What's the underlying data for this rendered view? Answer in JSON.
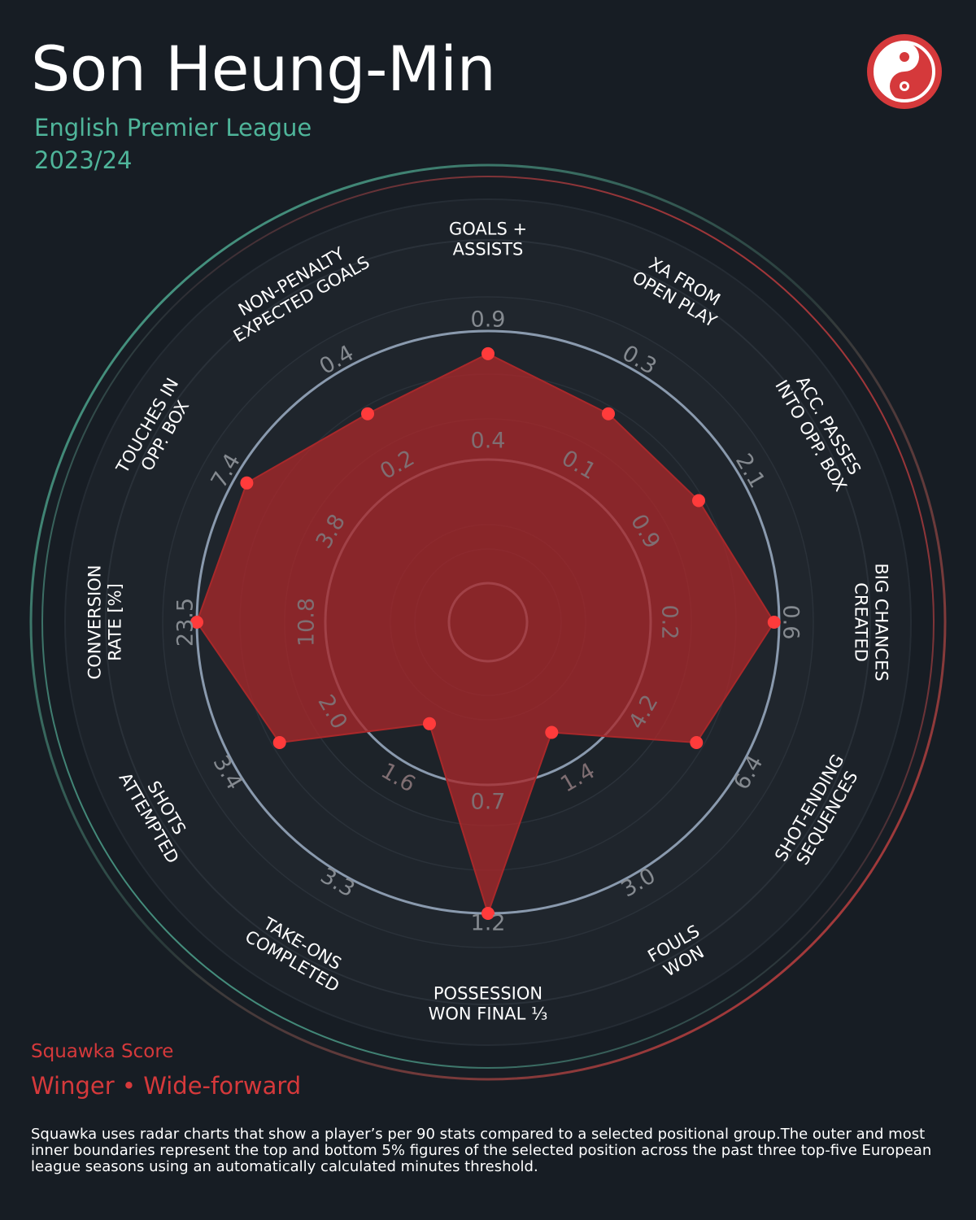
{
  "header": {
    "player_name": "Son Heung-Min",
    "league": "English Premier League",
    "season": "2023/24"
  },
  "footer": {
    "score_label": "Squawka Score",
    "position_group": "Winger • Wide-forward",
    "note": "Squawka uses radar charts that show a player’s per 90 stats compared to a selected positional group.The outer and most inner boundaries represent the top and bottom 5% figures of the selected position across the past three top-five European league seasons using an automatically calculated minutes threshold."
  },
  "colors": {
    "background": "#171d24",
    "accent_red": "#d5393b",
    "accent_teal": "#4fb59a",
    "radar_fill": "#a8282a",
    "marker": "#ff3b3b",
    "ring": "#8a9aae"
  },
  "logo_icon": "squawka-logo-icon",
  "chart_data": {
    "type": "radar",
    "title": "Son Heung-Min",
    "axes": [
      {
        "label": [
          "GOALS +",
          "ASSISTS"
        ],
        "outer_tick": "0.9",
        "inner_tick": "0.4",
        "percentile": 0.91
      },
      {
        "label": [
          "XA FROM",
          "OPEN PLAY"
        ],
        "outer_tick": "0.3",
        "inner_tick": "0.1",
        "percentile": 0.8
      },
      {
        "label": [
          "ACC. PASSES",
          "INTO OPP. BOX"
        ],
        "outer_tick": "2.1",
        "inner_tick": "0.9",
        "percentile": 0.81
      },
      {
        "label": [
          "BIG CHANCES",
          "CREATED"
        ],
        "outer_tick": "0.6",
        "inner_tick": "0.2",
        "percentile": 0.98
      },
      {
        "label": [
          "SHOT-ENDING",
          "SEQUENCES"
        ],
        "outer_tick": "6.4",
        "inner_tick": "4.2",
        "percentile": 0.8
      },
      {
        "label": [
          "FOULS",
          "WON"
        ],
        "outer_tick": "3.0",
        "inner_tick": "1.4",
        "percentile": 0.35
      },
      {
        "label": [
          "POSSESSION",
          "WON FINAL ⅓"
        ],
        "outer_tick": "1.2",
        "inner_tick": "0.7",
        "percentile": 1.0
      },
      {
        "label": [
          "TAKE-ONS",
          "COMPLETED"
        ],
        "outer_tick": "3.3",
        "inner_tick": "1.6",
        "percentile": 0.31
      },
      {
        "label": [
          "SHOTS",
          "ATTEMPTED"
        ],
        "outer_tick": "3.4",
        "inner_tick": "2.0",
        "percentile": 0.8
      },
      {
        "label": [
          "CONVERSION",
          "RATE [%]"
        ],
        "outer_tick": "23.5",
        "inner_tick": "10.8",
        "percentile": 1.0
      },
      {
        "label": [
          "TOUCHES IN",
          "OPP. BOX"
        ],
        "outer_tick": "7.4",
        "inner_tick": "3.8",
        "percentile": 0.95
      },
      {
        "label": [
          "NON-PENALTY",
          "EXPECTED GOALS"
        ],
        "outer_tick": "0.4",
        "inner_tick": "0.2",
        "percentile": 0.8
      }
    ]
  }
}
